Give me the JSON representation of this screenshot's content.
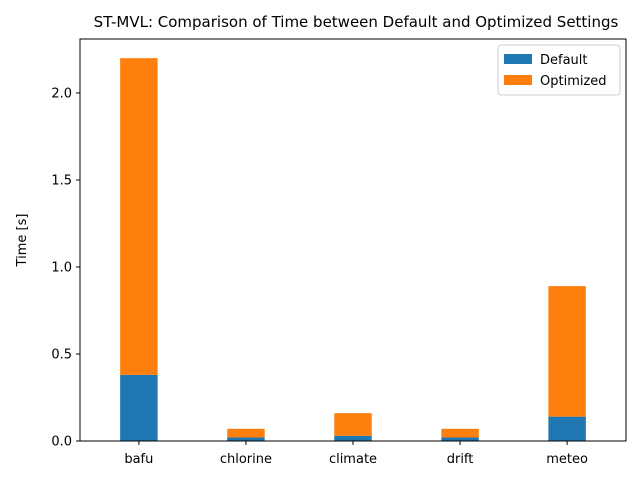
{
  "chart_data": {
    "type": "bar",
    "stacked": true,
    "title": "ST-MVL: Comparison of Time between Default and Optimized Settings",
    "xlabel": "",
    "ylabel": "Time [s]",
    "categories": [
      "bafu",
      "chlorine",
      "climate",
      "drift",
      "meteo"
    ],
    "series": [
      {
        "name": "Default",
        "color": "#1f77b4",
        "values": [
          0.38,
          0.02,
          0.03,
          0.02,
          0.14
        ]
      },
      {
        "name": "Optimized",
        "color": "#ff7f0e",
        "values": [
          1.82,
          0.05,
          0.13,
          0.05,
          0.75
        ]
      }
    ],
    "ylim": [
      0,
      2.31
    ],
    "yticks": [
      0.0,
      0.5,
      1.0,
      1.5,
      2.0
    ],
    "ytick_labels": [
      "0.0",
      "0.5",
      "1.0",
      "1.5",
      "2.0"
    ],
    "grid": false,
    "legend_position": "top-right"
  }
}
